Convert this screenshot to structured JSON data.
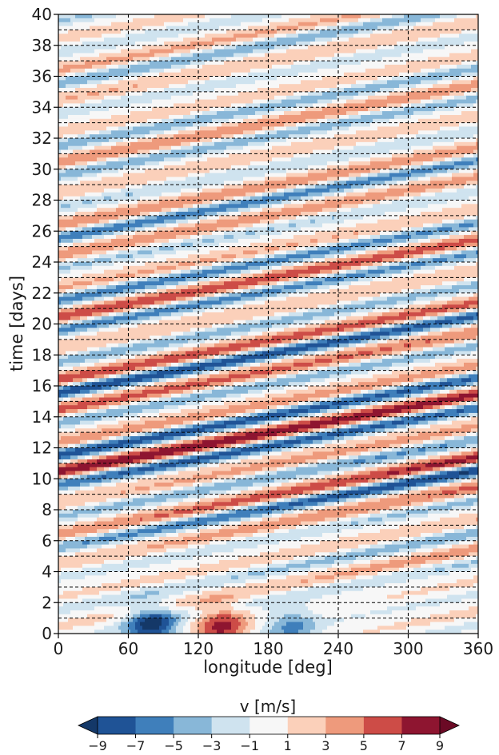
{
  "chart_data": {
    "type": "heatmap",
    "subtype": "filled-contour (Hovmoller diagram)",
    "xlabel": "longitude [deg]",
    "ylabel": "time [days]",
    "xlim": [
      0,
      360
    ],
    "ylim": [
      0,
      40
    ],
    "x_ticks": [
      0,
      60,
      120,
      180,
      240,
      300,
      360
    ],
    "y_ticks": [
      0,
      2,
      4,
      6,
      8,
      10,
      12,
      14,
      16,
      18,
      20,
      22,
      24,
      26,
      28,
      30,
      32,
      34,
      36,
      38,
      40
    ],
    "grid": {
      "style": "dashed",
      "color": "#000000",
      "vertical_lines_at_longitude": [
        60,
        120,
        180,
        240,
        300
      ],
      "horizontal_lines_every_days": 1
    },
    "colormap": "RdBu_r",
    "colorbar": {
      "label": "v [m/s]",
      "orientation": "horizontal",
      "placement": "bottom",
      "extend": "both",
      "ticks": [
        -9,
        -7,
        -5,
        -3,
        -1,
        1,
        3,
        5,
        7,
        9
      ],
      "tick_labels": [
        "−9",
        "−7",
        "−5",
        "−3",
        "−1",
        "1",
        "3",
        "5",
        "7",
        "9"
      ],
      "levels": [
        -9,
        -7,
        -5,
        -3,
        -1,
        1,
        3,
        5,
        7,
        9
      ],
      "colors": [
        "#1f5396",
        "#3f7fbb",
        "#88b7d8",
        "#cfe3ef",
        "#f7f7f7",
        "#fbd0ba",
        "#ee9a7c",
        "#cd4c47",
        "#8e1530"
      ],
      "under_color": "#143868",
      "over_color": "#6b0a25"
    },
    "field_description": {
      "variable": "v",
      "units": "m/s",
      "pattern": "diagonal eastward-propagating wave bands, positive and negative alternating",
      "band_slope_deg_per_day": 72,
      "band_spacing_days": 2,
      "amplitude_peak_m_s": 9,
      "peak_time_days": 11,
      "initial_perturbations": [
        {
          "lon": 80,
          "time": 0.5,
          "value": -9
        },
        {
          "lon": 140,
          "time": 0.5,
          "value": 7
        },
        {
          "lon": 200,
          "time": 0.5,
          "value": -5
        }
      ]
    }
  }
}
